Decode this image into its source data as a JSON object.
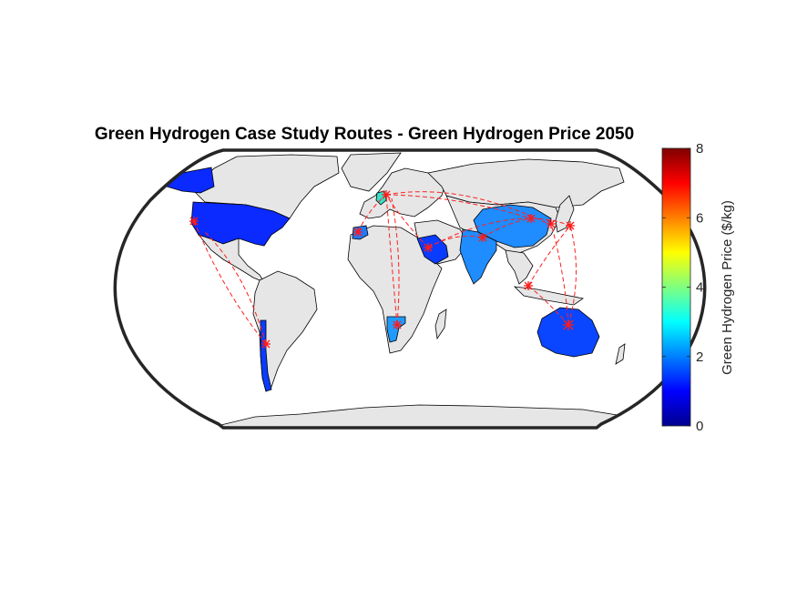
{
  "title": "Green Hydrogen Case Study Routes - Green Hydrogen Price 2050",
  "colorbar": {
    "label": "Green Hydrogen Price ($/kg)",
    "min": 0,
    "max": 8,
    "ticks": [
      "0",
      "2",
      "4",
      "6",
      "8"
    ],
    "colormap": "jet"
  },
  "colors": {
    "land": "#e6e6e6",
    "route": "#ff2020",
    "frame": "#262626",
    "usa": "#0a2aff",
    "australia": "#0a46ff",
    "china": "#1f8cff",
    "india": "#1f8cff",
    "saudi_arabia": "#0a3cff",
    "morocco": "#1f7aff",
    "namibia": "#1f9bff",
    "chile": "#0a3cff",
    "germany": "#35e0c8"
  },
  "countries": [
    {
      "name": "United States",
      "price": 1.2
    },
    {
      "name": "Chile",
      "price": 1.3
    },
    {
      "name": "Australia",
      "price": 1.4
    },
    {
      "name": "Saudi Arabia",
      "price": 1.3
    },
    {
      "name": "Morocco",
      "price": 1.7
    },
    {
      "name": "Namibia",
      "price": 2.1
    },
    {
      "name": "China",
      "price": 2.0
    },
    {
      "name": "India",
      "price": 2.0
    },
    {
      "name": "Germany",
      "price": 3.0
    }
  ]
}
